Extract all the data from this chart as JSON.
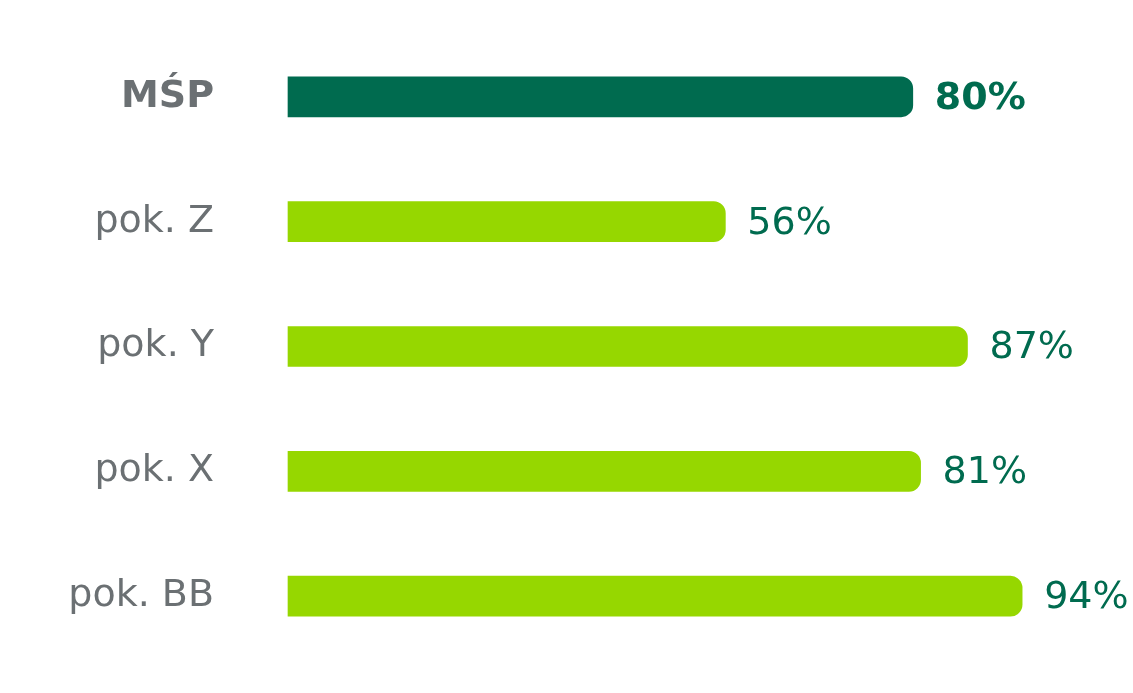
{
  "chart_data": {
    "type": "bar",
    "orientation": "horizontal",
    "categories": [
      "MŚP",
      "pok. Z",
      "pok. Y",
      "pok. X",
      "pok. BB"
    ],
    "values": [
      80,
      56,
      87,
      81,
      94
    ],
    "colors": [
      "#006b4f",
      "#96d700",
      "#96d700",
      "#96d700",
      "#96d700"
    ],
    "value_labels": [
      "80%",
      "56%",
      "87%",
      "81%",
      "94%"
    ],
    "tick_labels": "y",
    "grid": false,
    "legend": false
  }
}
